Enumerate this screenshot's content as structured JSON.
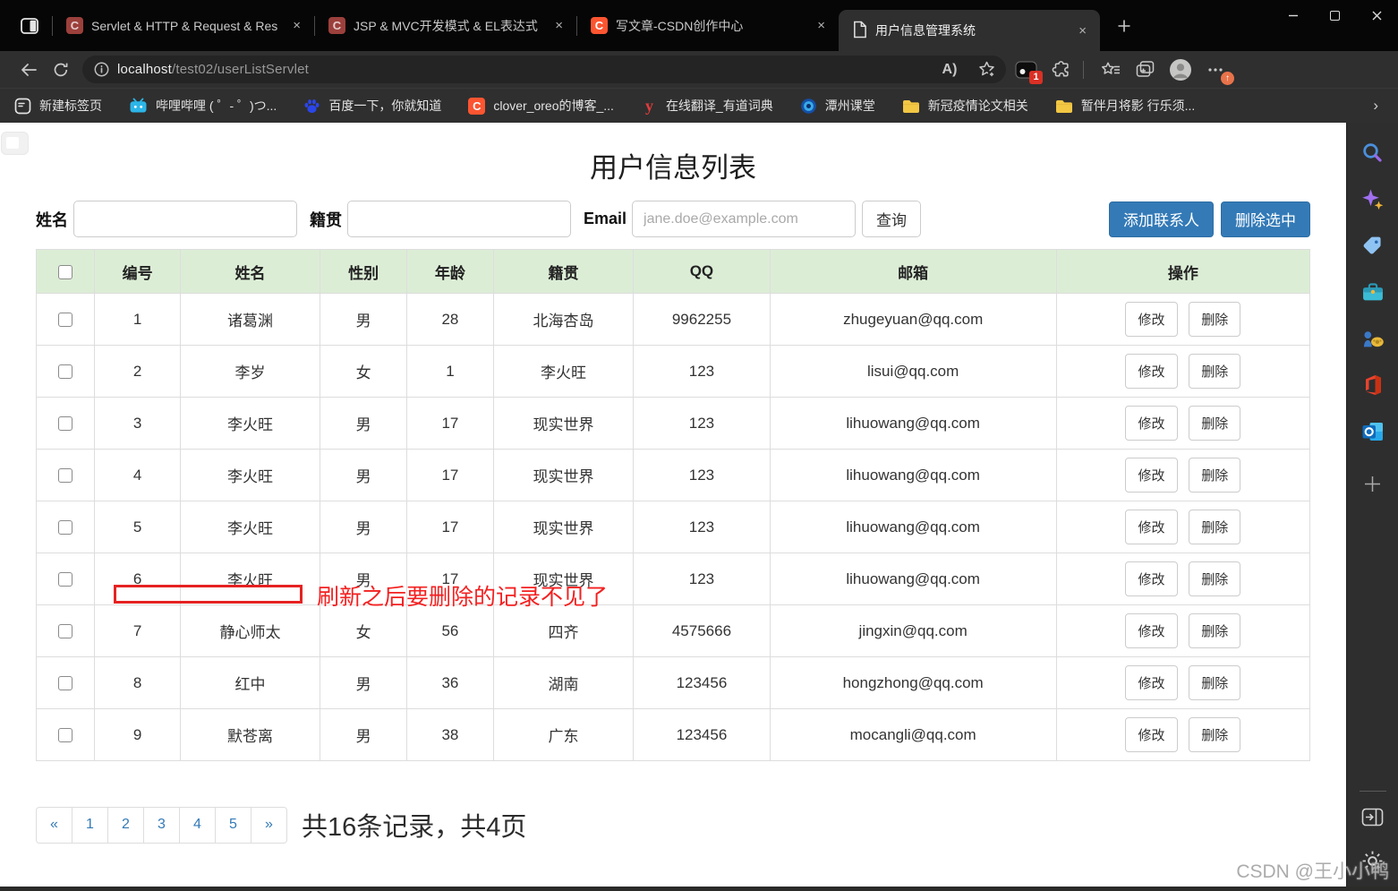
{
  "browser": {
    "tabs": [
      {
        "title": "Servlet & HTTP & Request & Res",
        "icon": "csdn",
        "active": false
      },
      {
        "title": "JSP & MVC开发模式 & EL表达式",
        "icon": "csdn",
        "active": false
      },
      {
        "title": "写文章-CSDN创作中心",
        "icon": "csdn-bright",
        "active": false
      },
      {
        "title": "用户信息管理系统",
        "icon": "document",
        "active": true
      }
    ],
    "tab_close_glyph": "×",
    "url": {
      "host": "localhost",
      "path": "/test02/userListServlet"
    },
    "toolbar": {
      "extension_badge": "1",
      "read_aloud_glyph": "A"
    },
    "bookmarks": [
      {
        "label": "新建标签页",
        "icon": "newtab"
      },
      {
        "label": "哔哩哔哩 ( ゜- ゜)つ...",
        "icon": "bilibili"
      },
      {
        "label": "百度一下，你就知道",
        "icon": "baidu"
      },
      {
        "label": "clover_oreo的博客_...",
        "icon": "csdn-bm"
      },
      {
        "label": "在线翻译_有道词典",
        "icon": "youdao"
      },
      {
        "label": "潭州课堂",
        "icon": "tanzhou"
      },
      {
        "label": "新冠疫情论文相关",
        "icon": "folder"
      },
      {
        "label": "暂伴月将影 行乐须...",
        "icon": "folder"
      }
    ]
  },
  "page": {
    "title": "用户信息列表",
    "form": {
      "name_label": "姓名",
      "origin_label": "籍贯",
      "email_label": "Email",
      "email_placeholder": "jane.doe@example.com",
      "search_button": "查询",
      "add_button": "添加联系人",
      "delete_button": "删除选中"
    },
    "table": {
      "headers": [
        "编号",
        "姓名",
        "性别",
        "年龄",
        "籍贯",
        "QQ",
        "邮箱",
        "操作"
      ],
      "edit_label": "修改",
      "delete_label": "删除",
      "rows": [
        {
          "id": "1",
          "name": "诸葛渊",
          "gender": "男",
          "age": "28",
          "origin": "北海杏岛",
          "qq": "9962255",
          "email": "zhugeyuan@qq.com"
        },
        {
          "id": "2",
          "name": "李岁",
          "gender": "女",
          "age": "1",
          "origin": "李火旺",
          "qq": "123",
          "email": "lisui@qq.com"
        },
        {
          "id": "3",
          "name": "李火旺",
          "gender": "男",
          "age": "17",
          "origin": "现实世界",
          "qq": "123",
          "email": "lihuowang@qq.com"
        },
        {
          "id": "4",
          "name": "李火旺",
          "gender": "男",
          "age": "17",
          "origin": "现实世界",
          "qq": "123",
          "email": "lihuowang@qq.com"
        },
        {
          "id": "5",
          "name": "李火旺",
          "gender": "男",
          "age": "17",
          "origin": "现实世界",
          "qq": "123",
          "email": "lihuowang@qq.com"
        },
        {
          "id": "6",
          "name": "李火旺",
          "gender": "男",
          "age": "17",
          "origin": "现实世界",
          "qq": "123",
          "email": "lihuowang@qq.com"
        },
        {
          "id": "7",
          "name": "静心师太",
          "gender": "女",
          "age": "56",
          "origin": "四齐",
          "qq": "4575666",
          "email": "jingxin@qq.com"
        },
        {
          "id": "8",
          "name": "红中",
          "gender": "男",
          "age": "36",
          "origin": "湖南",
          "qq": "123456",
          "email": "hongzhong@qq.com"
        },
        {
          "id": "9",
          "name": "默苍离",
          "gender": "男",
          "age": "38",
          "origin": "广东",
          "qq": "123456",
          "email": "mocangli@qq.com"
        }
      ]
    },
    "annotation": {
      "text": "刷新之后要删除的记录不见了"
    },
    "pagination": {
      "items": [
        "«",
        "1",
        "2",
        "3",
        "4",
        "5",
        "»"
      ],
      "summary": "共16条记录，共4页"
    }
  },
  "sidebar": {
    "icons": [
      "search",
      "copilot",
      "shopping",
      "toolbox",
      "games",
      "office",
      "outlook",
      "add"
    ],
    "bottom_icons": [
      "open-panel",
      "settings"
    ]
  },
  "watermark": "CSDN @王小小鸭",
  "colors": {
    "accent_blue": "#337ab7",
    "table_header_green": "#dcedd6",
    "annotation_red": "#f32020",
    "tab_active_bg": "#2f2f2f",
    "csdn_orange": "#fc5531"
  }
}
